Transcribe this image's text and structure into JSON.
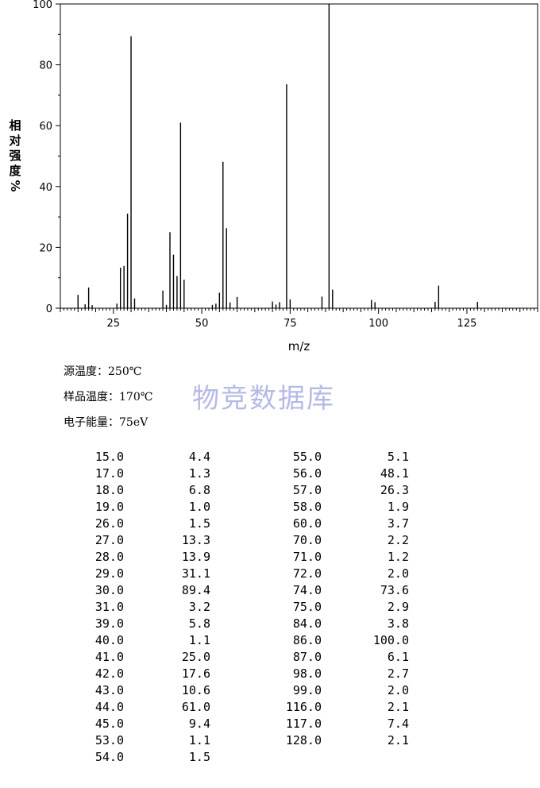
{
  "chart_data": {
    "type": "bar",
    "xlabel": "m/z",
    "ylabel": "相对强度 %",
    "xlim": [
      10,
      145
    ],
    "ylim": [
      0,
      100
    ],
    "x_ticks": [
      25,
      50,
      75,
      100,
      125
    ],
    "y_ticks": [
      0,
      20,
      40,
      60,
      80,
      100
    ],
    "grid": false,
    "points": [
      {
        "mz": 15.0,
        "intensity": 4.4
      },
      {
        "mz": 17.0,
        "intensity": 1.3
      },
      {
        "mz": 18.0,
        "intensity": 6.8
      },
      {
        "mz": 19.0,
        "intensity": 1.0
      },
      {
        "mz": 26.0,
        "intensity": 1.5
      },
      {
        "mz": 27.0,
        "intensity": 13.3
      },
      {
        "mz": 28.0,
        "intensity": 13.9
      },
      {
        "mz": 29.0,
        "intensity": 31.1
      },
      {
        "mz": 30.0,
        "intensity": 89.4
      },
      {
        "mz": 31.0,
        "intensity": 3.2
      },
      {
        "mz": 39.0,
        "intensity": 5.8
      },
      {
        "mz": 40.0,
        "intensity": 1.1
      },
      {
        "mz": 41.0,
        "intensity": 25.0
      },
      {
        "mz": 42.0,
        "intensity": 17.6
      },
      {
        "mz": 43.0,
        "intensity": 10.6
      },
      {
        "mz": 44.0,
        "intensity": 61.0
      },
      {
        "mz": 45.0,
        "intensity": 9.4
      },
      {
        "mz": 53.0,
        "intensity": 1.1
      },
      {
        "mz": 54.0,
        "intensity": 1.5
      },
      {
        "mz": 55.0,
        "intensity": 5.1
      },
      {
        "mz": 56.0,
        "intensity": 48.1
      },
      {
        "mz": 57.0,
        "intensity": 26.3
      },
      {
        "mz": 58.0,
        "intensity": 1.9
      },
      {
        "mz": 60.0,
        "intensity": 3.7
      },
      {
        "mz": 70.0,
        "intensity": 2.2
      },
      {
        "mz": 71.0,
        "intensity": 1.2
      },
      {
        "mz": 72.0,
        "intensity": 2.0
      },
      {
        "mz": 74.0,
        "intensity": 73.6
      },
      {
        "mz": 75.0,
        "intensity": 2.9
      },
      {
        "mz": 84.0,
        "intensity": 3.8
      },
      {
        "mz": 86.0,
        "intensity": 100.0
      },
      {
        "mz": 87.0,
        "intensity": 6.1
      },
      {
        "mz": 98.0,
        "intensity": 2.7
      },
      {
        "mz": 99.0,
        "intensity": 2.0
      },
      {
        "mz": 116.0,
        "intensity": 2.1
      },
      {
        "mz": 117.0,
        "intensity": 7.4
      },
      {
        "mz": 128.0,
        "intensity": 2.1
      }
    ]
  },
  "ylabel_chars": [
    "相",
    "对",
    "强",
    "度",
    "%"
  ],
  "info": {
    "source_temp": "源温度：250℃",
    "sample_temp": "样品温度：170℃",
    "electron_energy": "电子能量：75eV"
  },
  "watermark": "物竞数据库",
  "table": {
    "left": [
      [
        "15.0",
        "4.4"
      ],
      [
        "17.0",
        "1.3"
      ],
      [
        "18.0",
        "6.8"
      ],
      [
        "19.0",
        "1.0"
      ],
      [
        "26.0",
        "1.5"
      ],
      [
        "27.0",
        "13.3"
      ],
      [
        "28.0",
        "13.9"
      ],
      [
        "29.0",
        "31.1"
      ],
      [
        "30.0",
        "89.4"
      ],
      [
        "31.0",
        "3.2"
      ],
      [
        "39.0",
        "5.8"
      ],
      [
        "40.0",
        "1.1"
      ],
      [
        "41.0",
        "25.0"
      ],
      [
        "42.0",
        "17.6"
      ],
      [
        "43.0",
        "10.6"
      ],
      [
        "44.0",
        "61.0"
      ],
      [
        "45.0",
        "9.4"
      ],
      [
        "53.0",
        "1.1"
      ],
      [
        "54.0",
        "1.5"
      ]
    ],
    "right": [
      [
        "55.0",
        "5.1"
      ],
      [
        "56.0",
        "48.1"
      ],
      [
        "57.0",
        "26.3"
      ],
      [
        "58.0",
        "1.9"
      ],
      [
        "60.0",
        "3.7"
      ],
      [
        "70.0",
        "2.2"
      ],
      [
        "71.0",
        "1.2"
      ],
      [
        "72.0",
        "2.0"
      ],
      [
        "74.0",
        "73.6"
      ],
      [
        "75.0",
        "2.9"
      ],
      [
        "84.0",
        "3.8"
      ],
      [
        "86.0",
        "100.0"
      ],
      [
        "87.0",
        "6.1"
      ],
      [
        "98.0",
        "2.7"
      ],
      [
        "99.0",
        "2.0"
      ],
      [
        "116.0",
        "2.1"
      ],
      [
        "117.0",
        "7.4"
      ],
      [
        "128.0",
        "2.1"
      ]
    ]
  },
  "colors": {
    "axis": "#000000",
    "bar": "#000000",
    "watermark": "#b5b9e6"
  }
}
